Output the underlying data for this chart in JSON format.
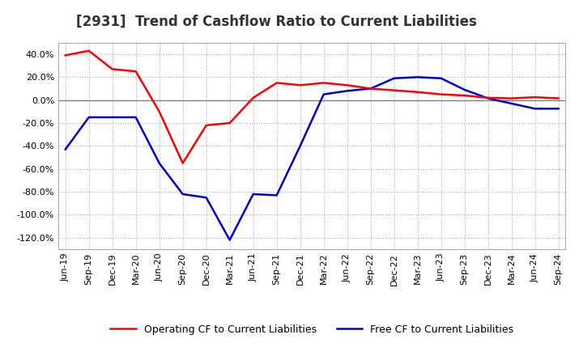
{
  "title": "[2931]  Trend of Cashflow Ratio to Current Liabilities",
  "x_labels": [
    "Jun-19",
    "Sep-19",
    "Dec-19",
    "Mar-20",
    "Jun-20",
    "Sep-20",
    "Dec-20",
    "Mar-21",
    "Jun-21",
    "Sep-21",
    "Dec-21",
    "Mar-22",
    "Jun-22",
    "Sep-22",
    "Dec-22",
    "Mar-23",
    "Jun-23",
    "Sep-23",
    "Dec-23",
    "Mar-24",
    "Jun-24",
    "Sep-24"
  ],
  "operating_cf": [
    39.0,
    43.0,
    27.0,
    25.0,
    -10.0,
    -55.0,
    -22.0,
    -20.0,
    2.0,
    15.0,
    13.0,
    15.0,
    13.0,
    10.0,
    8.5,
    7.0,
    5.0,
    4.0,
    2.0,
    1.5,
    2.5,
    1.5
  ],
  "free_cf": [
    -43.0,
    -15.0,
    -15.0,
    -15.0,
    -55.0,
    -82.0,
    -85.0,
    -122.0,
    -82.0,
    -83.0,
    -40.0,
    5.0,
    8.0,
    10.0,
    19.0,
    20.0,
    19.0,
    9.0,
    1.5,
    -3.0,
    -7.5,
    -7.5
  ],
  "ylim": [
    -130,
    50
  ],
  "yticks": [
    40,
    20,
    0,
    -20,
    -40,
    -60,
    -80,
    -100,
    -120
  ],
  "operating_color": "#FF0000",
  "free_color": "#0000CC",
  "bg_color": "#FFFFFF",
  "grid_color": "#AAAAAA",
  "legend_op": "Operating CF to Current Liabilities",
  "legend_free": "Free CF to Current Liabilities",
  "title_fontsize": 12,
  "axis_fontsize": 8,
  "legend_fontsize": 9,
  "line_width": 1.8
}
